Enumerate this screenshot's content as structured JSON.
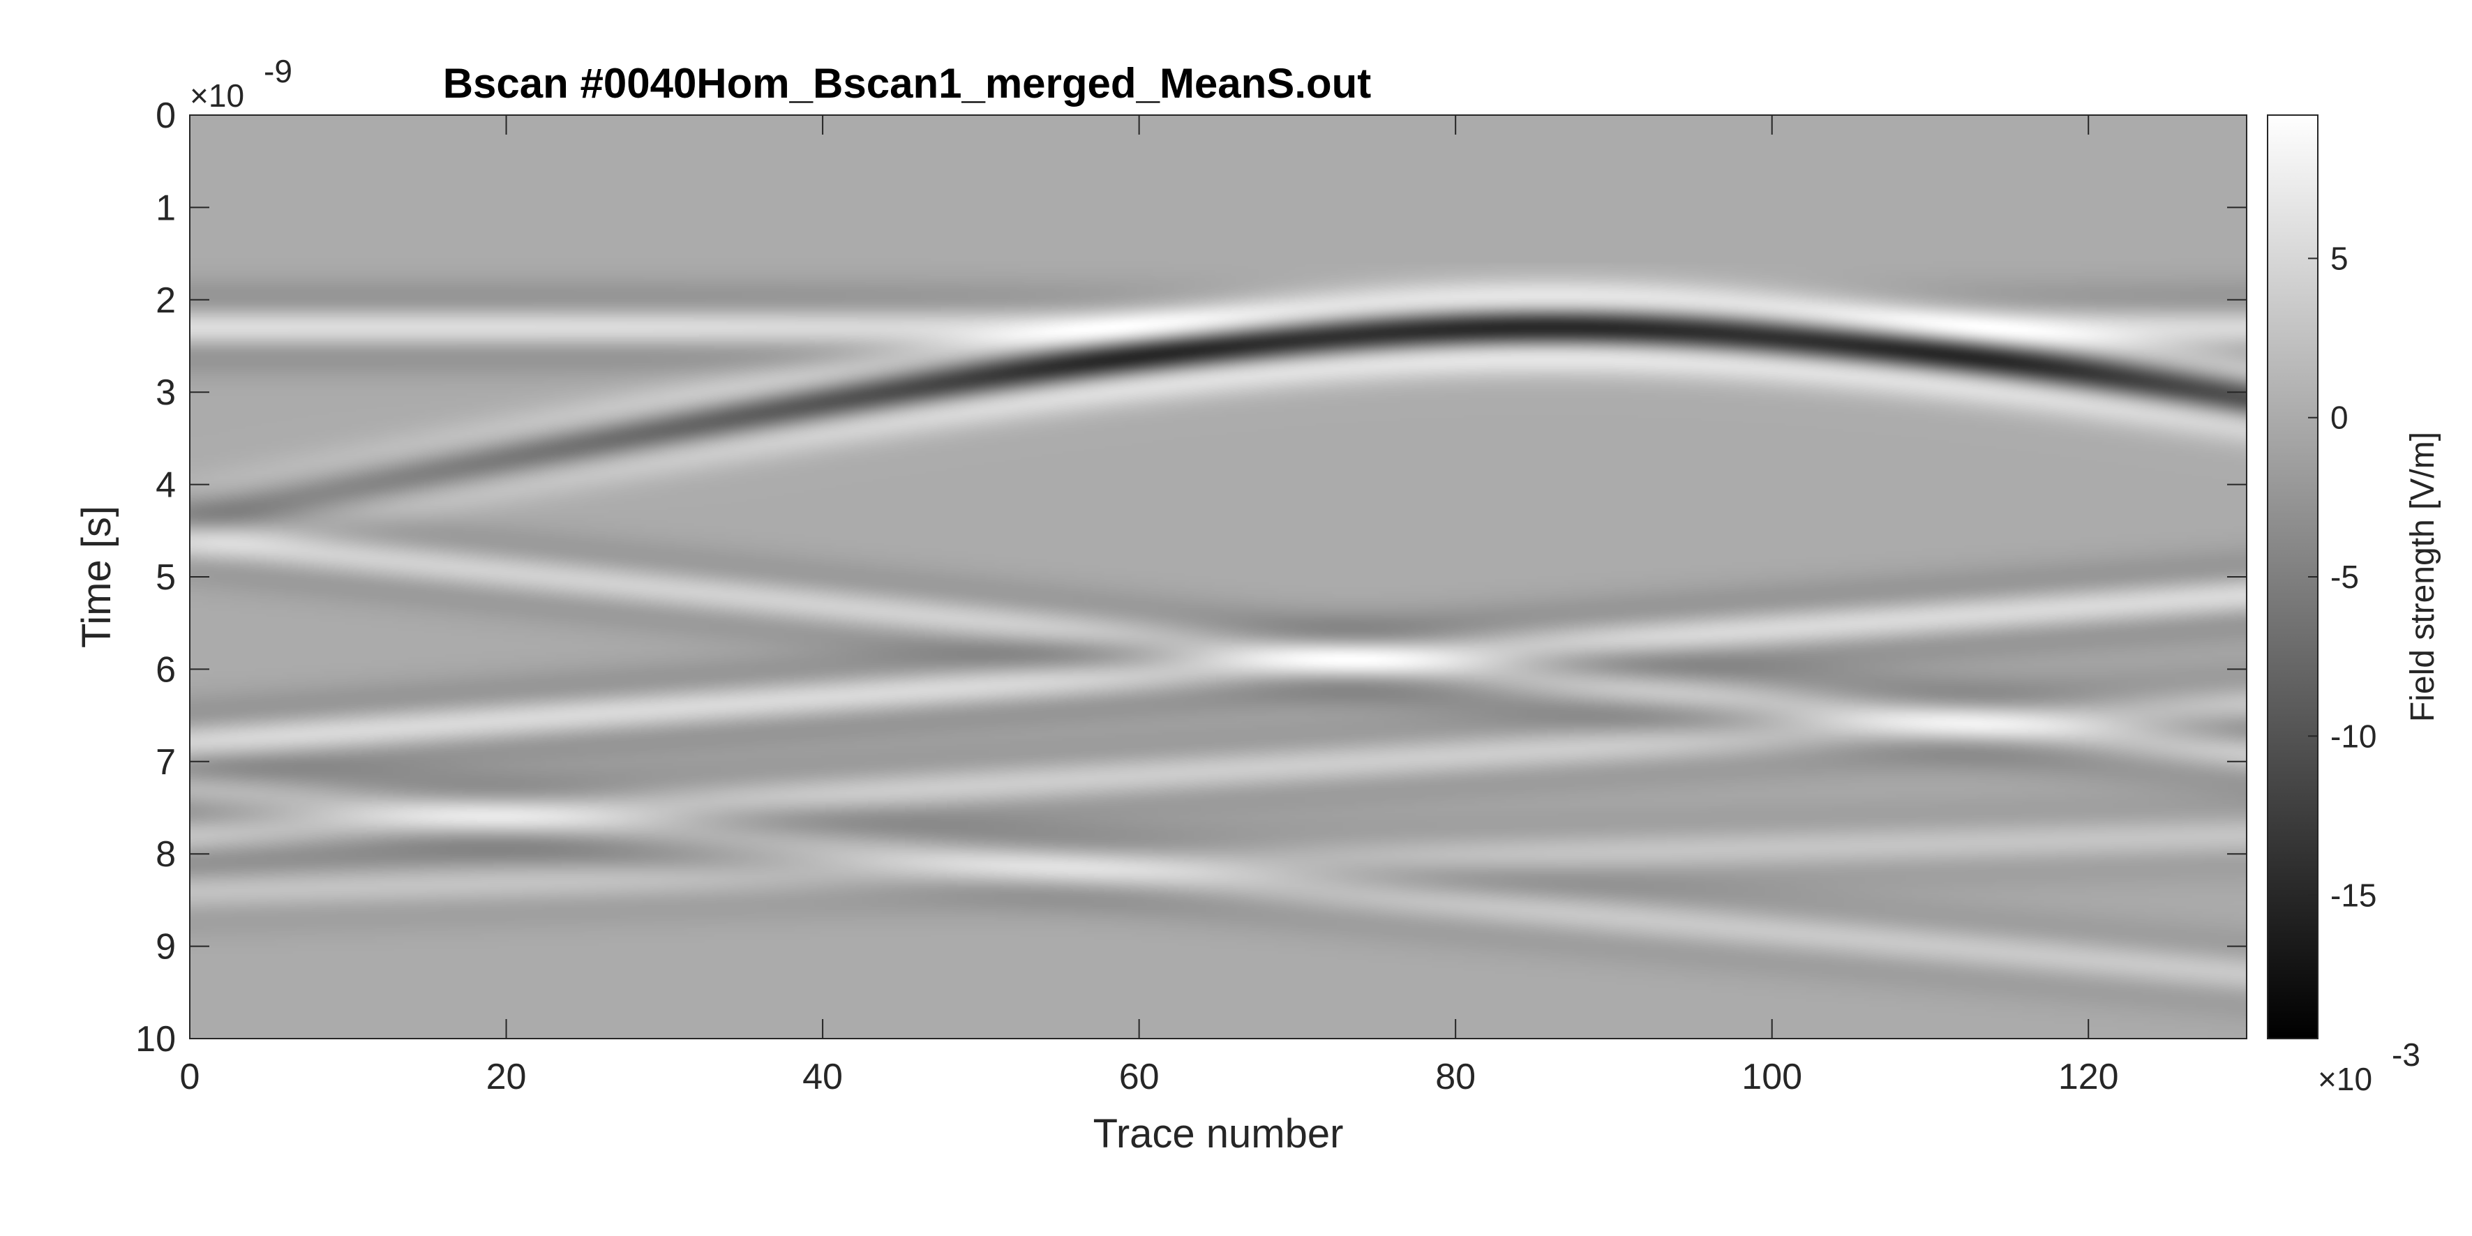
{
  "chart_data": {
    "type": "heatmap",
    "title": "Bscan #0040Hom_Bscan1_merged_MeanS.out",
    "xlabel": "Trace number",
    "ylabel": "Time [s]",
    "xlim": [
      0,
      130
    ],
    "ylim": [
      0,
      10
    ],
    "y_multiplier": "×10",
    "y_exponent": "-9",
    "y_reversed": true,
    "x_ticks": [
      "0",
      "20",
      "40",
      "60",
      "80",
      "100",
      "120"
    ],
    "x_tick_values": [
      0,
      20,
      40,
      60,
      80,
      100,
      120
    ],
    "y_ticks": [
      "0",
      "1",
      "2",
      "3",
      "4",
      "5",
      "6",
      "7",
      "8",
      "9",
      "10"
    ],
    "y_tick_values": [
      0,
      1,
      2,
      3,
      4,
      5,
      6,
      7,
      8,
      9,
      10
    ],
    "colormap": "gray",
    "colorbar": {
      "label": "Field strength [V/m]",
      "range": [
        -19.5,
        9.5
      ],
      "ticks": [
        "5",
        "0",
        "-5",
        "-10",
        "-15"
      ],
      "tick_values": [
        5,
        0,
        -5,
        -10,
        -15
      ],
      "multiplier": "×10",
      "exponent": "-3"
    },
    "features": [
      {
        "kind": "hyperbola",
        "apex_trace": 86,
        "apex_time": 2.3,
        "width": 34,
        "amplitude": 1.0
      },
      {
        "kind": "flat_reflection",
        "time": 2.3,
        "amplitude": 0.35
      },
      {
        "kind": "linear_event",
        "time_at_0": 4.6,
        "time_at_130": 6.9,
        "amplitude": 0.45
      },
      {
        "kind": "linear_event",
        "time_at_0": 6.8,
        "time_at_130": 5.2,
        "amplitude": 0.55
      },
      {
        "kind": "linear_event",
        "time_at_0": 7.8,
        "time_at_130": 6.4,
        "amplitude": 0.4
      },
      {
        "kind": "linear_event",
        "time_at_0": 7.3,
        "time_at_130": 9.3,
        "amplitude": 0.35
      },
      {
        "kind": "linear_event",
        "time_at_0": 8.4,
        "time_at_130": 7.8,
        "amplitude": 0.3
      }
    ]
  }
}
